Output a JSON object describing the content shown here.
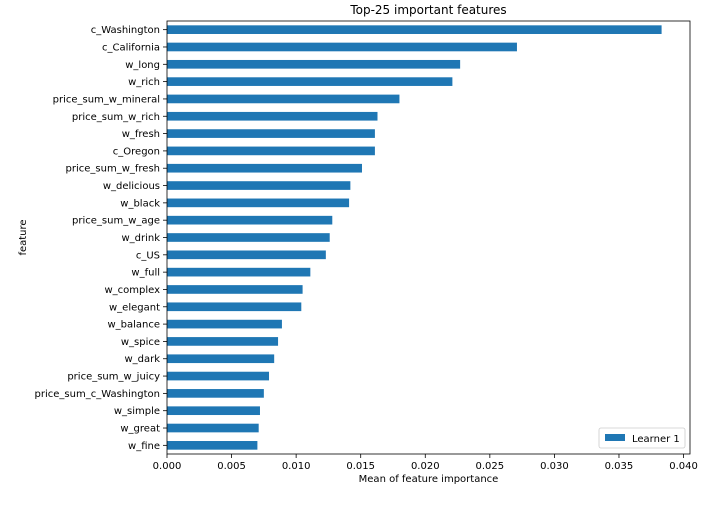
{
  "chart_data": {
    "type": "bar",
    "orientation": "horizontal",
    "title": "Top-25 important features",
    "xlabel": "Mean of feature importance",
    "ylabel": "feature",
    "xlim": [
      0,
      0.0405
    ],
    "xticks": [
      "0.000",
      "0.005",
      "0.010",
      "0.015",
      "0.020",
      "0.025",
      "0.030",
      "0.035",
      "0.040"
    ],
    "categories": [
      "c_Washington",
      "c_California",
      "w_long",
      "w_rich",
      "price_sum_w_mineral",
      "price_sum_w_rich",
      "w_fresh",
      "c_Oregon",
      "price_sum_w_fresh",
      "w_delicious",
      "w_black",
      "price_sum_w_age",
      "w_drink",
      "c_US",
      "w_full",
      "w_complex",
      "w_elegant",
      "w_balance",
      "w_spice",
      "w_dark",
      "price_sum_w_juicy",
      "price_sum_c_Washington",
      "w_simple",
      "w_great",
      "w_fine"
    ],
    "series": [
      {
        "name": "Learner 1",
        "color": "#1f77b4",
        "values": [
          0.0383,
          0.0271,
          0.0227,
          0.0221,
          0.018,
          0.0163,
          0.0161,
          0.0161,
          0.0151,
          0.0142,
          0.0141,
          0.0128,
          0.0126,
          0.0123,
          0.0111,
          0.0105,
          0.0104,
          0.0089,
          0.0086,
          0.0083,
          0.0079,
          0.0075,
          0.0072,
          0.0071,
          0.007
        ]
      }
    ],
    "legend_position": "lower-right",
    "grid": false
  }
}
